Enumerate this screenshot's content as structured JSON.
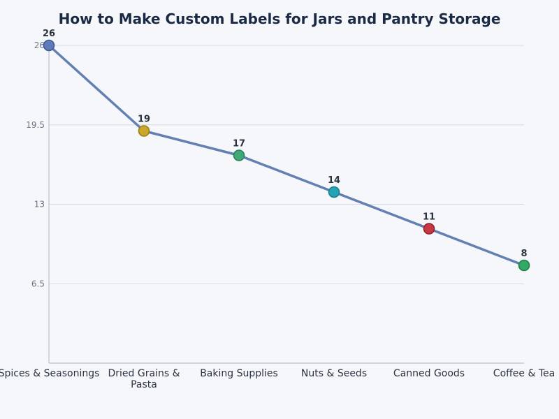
{
  "chart_data": {
    "type": "line",
    "title": "How to Make Custom Labels for Jars and Pantry Storage",
    "xlabel": "",
    "ylabel": "",
    "categories": [
      [
        "Spices & Seasonings"
      ],
      [
        "Dried Grains &",
        "Pasta"
      ],
      [
        "Baking Supplies"
      ],
      [
        "Nuts & Seeds"
      ],
      [
        "Canned Goods"
      ],
      [
        "Coffee & Tea"
      ]
    ],
    "series": [
      {
        "values": [
          26,
          19,
          17,
          14,
          11,
          8
        ]
      }
    ],
    "ylim": [
      0,
      26
    ],
    "yticks": [
      6.5,
      13,
      19.5,
      26
    ],
    "ytick_labels": [
      "6.5",
      "13",
      "19.5",
      "26"
    ],
    "grid": "horizontal",
    "line_color": "#6480b3",
    "point_colors": [
      "#5f7ab8",
      "#c8a72b",
      "#41a87a",
      "#27a3b5",
      "#c73845",
      "#35a865"
    ],
    "point_edge_colors": [
      "#3f5a96",
      "#9c8019",
      "#2c8258",
      "#17808f",
      "#92222e",
      "#21814a"
    ]
  }
}
